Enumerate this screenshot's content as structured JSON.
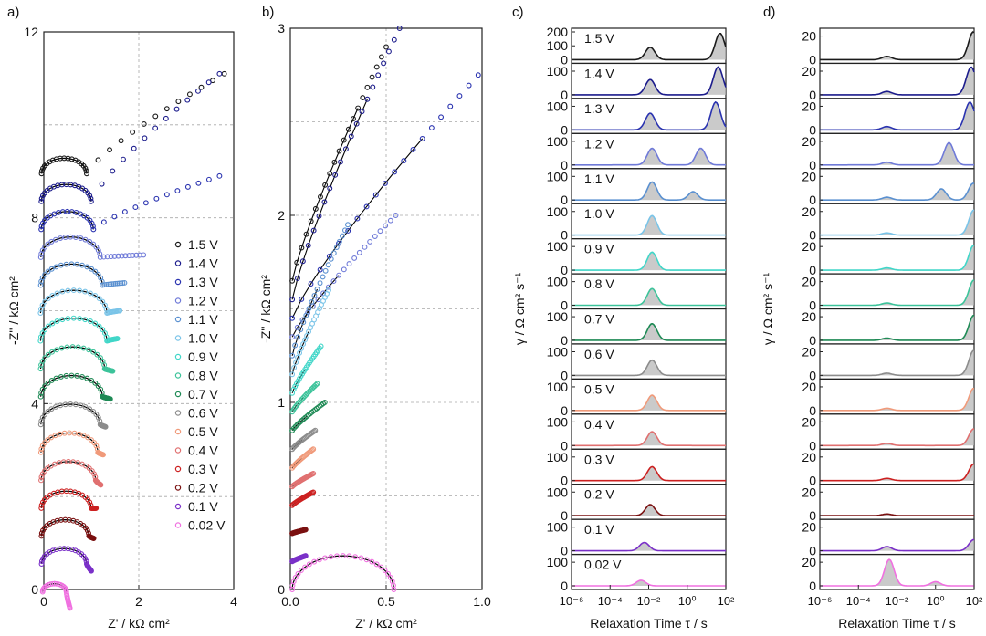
{
  "chart_data": [
    {
      "type": "scatter",
      "panel": "a)",
      "xlabel": "Z' / kΩ cm²",
      "ylabel": "-Z'' / kΩ cm²",
      "xlim": [
        0,
        4
      ],
      "ylim": [
        0,
        12
      ],
      "xticks": [
        "0",
        "2",
        "4"
      ],
      "yticks": [
        "0",
        "4",
        "8",
        "12"
      ],
      "grid": true,
      "legend": [
        "1.5 V",
        "1.4 V",
        "1.3 V",
        "1.2 V",
        "1.1 V",
        "1.0 V",
        "0.9 V",
        "0.8 V",
        "0.7 V",
        "0.6 V",
        "0.5 V",
        "0.4 V",
        "0.3 V",
        "0.2 V",
        "0.1 V",
        "0.02 V"
      ],
      "series": [
        {
          "name": "1.5 V",
          "offset": 8.4,
          "arc_end": 0.95,
          "tail_end": [
            3.8,
            11.1
          ]
        },
        {
          "name": "1.4 V",
          "offset": 7.8,
          "arc_end": 1.05,
          "tail_end": [
            3.7,
            11.1
          ]
        },
        {
          "name": "1.3 V",
          "offset": 7.2,
          "arc_end": 1.1,
          "tail_end": [
            3.7,
            8.9
          ]
        },
        {
          "name": "1.2 V",
          "offset": 6.6,
          "arc_end": 1.25,
          "tail_end": [
            2.1,
            7.2
          ]
        },
        {
          "name": "1.1 V",
          "offset": 6.0,
          "arc_end": 1.3,
          "tail_end": [
            1.7,
            6.6
          ]
        },
        {
          "name": "1.0 V",
          "offset": 5.4,
          "arc_end": 1.4,
          "tail_end": [
            1.6,
            6.0
          ]
        },
        {
          "name": "0.9 V",
          "offset": 4.8,
          "arc_end": 1.4,
          "tail_end": [
            1.55,
            5.4
          ]
        },
        {
          "name": "0.8 V",
          "offset": 4.2,
          "arc_end": 1.35,
          "tail_end": [
            1.45,
            4.7
          ]
        },
        {
          "name": "0.7 V",
          "offset": 3.6,
          "arc_end": 1.3,
          "tail_end": [
            1.4,
            4.1
          ]
        },
        {
          "name": "0.6 V",
          "offset": 3.0,
          "arc_end": 1.25,
          "tail_end": [
            1.3,
            3.5
          ]
        },
        {
          "name": "0.5 V",
          "offset": 2.4,
          "arc_end": 1.2,
          "tail_end": [
            1.25,
            2.9
          ]
        },
        {
          "name": "0.4 V",
          "offset": 1.8,
          "arc_end": 1.15,
          "tail_end": [
            1.2,
            2.25
          ]
        },
        {
          "name": "0.3 V",
          "offset": 1.2,
          "arc_end": 1.05,
          "tail_end": [
            1.1,
            1.75
          ]
        },
        {
          "name": "0.2 V",
          "offset": 0.6,
          "arc_end": 1.0,
          "tail_end": [
            1.05,
            1.1
          ]
        },
        {
          "name": "0.1 V",
          "offset": 0.0,
          "arc_end": 0.95,
          "tail_end": [
            1.0,
            0.4
          ]
        },
        {
          "name": "0.02 V",
          "offset": -0.6,
          "arc_end": 0.5,
          "tail_end": [
            0.55,
            -0.4
          ]
        }
      ]
    },
    {
      "type": "scatter",
      "panel": "b)",
      "xlabel": "Z' / kΩ cm²",
      "ylabel": "-Z'' / kΩ cm²",
      "xlim": [
        0,
        1
      ],
      "ylim": [
        0,
        3
      ],
      "xticks": [
        "0.0",
        "0.5",
        "1.0"
      ],
      "yticks": [
        "0",
        "1",
        "2",
        "3"
      ],
      "grid": true,
      "series": [
        {
          "name": "1.5 V",
          "start_y": 1.65,
          "end": [
            0.5,
            2.9
          ]
        },
        {
          "name": "1.4 V",
          "start_y": 1.55,
          "end": [
            0.57,
            3.0
          ]
        },
        {
          "name": "1.3 V",
          "start_y": 1.45,
          "end": [
            0.98,
            2.75
          ]
        },
        {
          "name": "1.2 V",
          "start_y": 1.35,
          "end": [
            0.55,
            2.0
          ]
        },
        {
          "name": "1.1 V",
          "start_y": 1.25,
          "end": [
            0.3,
            1.95
          ]
        },
        {
          "name": "1.0 V",
          "start_y": 1.15,
          "end": [
            0.2,
            1.6
          ]
        },
        {
          "name": "0.9 V",
          "start_y": 1.05,
          "end": [
            0.16,
            1.3
          ]
        },
        {
          "name": "0.8 V",
          "start_y": 0.95,
          "end": [
            0.14,
            1.1
          ]
        },
        {
          "name": "0.7 V",
          "start_y": 0.85,
          "end": [
            0.18,
            1.0
          ]
        },
        {
          "name": "0.6 V",
          "start_y": 0.75,
          "end": [
            0.13,
            0.85
          ]
        },
        {
          "name": "0.5 V",
          "start_y": 0.65,
          "end": [
            0.12,
            0.75
          ]
        },
        {
          "name": "0.4 V",
          "start_y": 0.55,
          "end": [
            0.12,
            0.62
          ]
        },
        {
          "name": "0.3 V",
          "start_y": 0.45,
          "end": [
            0.12,
            0.52
          ]
        },
        {
          "name": "0.2 V",
          "start_y": 0.3,
          "end": [
            0.08,
            0.32
          ]
        },
        {
          "name": "0.1 V",
          "start_y": 0.15,
          "end": [
            0.08,
            0.18
          ]
        },
        {
          "name": "0.02 V",
          "start_y": 0.0,
          "end": [
            0.55,
            0.0
          ]
        }
      ]
    },
    {
      "type": "area",
      "panel": "c)",
      "xlabel": "Relaxation Time τ / s",
      "ylabel": "γ / Ω cm² s⁻¹",
      "xlim": [
        1e-06,
        100
      ],
      "x_scale": "log",
      "xticks": [
        "10⁻⁶",
        "10⁻⁴",
        "10⁻²",
        "10⁰",
        "10²"
      ],
      "rows": [
        {
          "label": "1.5 V",
          "yticks": [
            "200",
            "100",
            "0"
          ],
          "peaks": [
            [
              0.012,
              0.45
            ],
            [
              50,
              0.95
            ]
          ]
        },
        {
          "label": "1.4 V",
          "yticks": [
            "100",
            "0"
          ],
          "peaks": [
            [
              0.012,
              0.55
            ],
            [
              40,
              1.0
            ]
          ]
        },
        {
          "label": "1.3 V",
          "yticks": [
            "100",
            "0"
          ],
          "peaks": [
            [
              0.012,
              0.6
            ],
            [
              30,
              1.0
            ]
          ]
        },
        {
          "label": "1.2 V",
          "yticks": [
            "100",
            "0"
          ],
          "peaks": [
            [
              0.015,
              0.6
            ],
            [
              5,
              0.6
            ]
          ]
        },
        {
          "label": "1.1 V",
          "yticks": [
            "100",
            "0"
          ],
          "peaks": [
            [
              0.015,
              0.65
            ],
            [
              2,
              0.3
            ]
          ]
        },
        {
          "label": "1.0 V",
          "yticks": [
            "100",
            "0"
          ],
          "peaks": [
            [
              0.015,
              0.7
            ]
          ]
        },
        {
          "label": "0.9 V",
          "yticks": [
            "100",
            "0"
          ],
          "peaks": [
            [
              0.015,
              0.65
            ]
          ]
        },
        {
          "label": "0.8 V",
          "yticks": [
            "100",
            "0"
          ],
          "peaks": [
            [
              0.015,
              0.6
            ]
          ]
        },
        {
          "label": "0.7 V",
          "yticks": [
            "100",
            "0"
          ],
          "peaks": [
            [
              0.015,
              0.6
            ]
          ]
        },
        {
          "label": "0.6 V",
          "yticks": [
            "100",
            "0"
          ],
          "peaks": [
            [
              0.015,
              0.55
            ]
          ]
        },
        {
          "label": "0.5 V",
          "yticks": [
            "100",
            "0"
          ],
          "peaks": [
            [
              0.015,
              0.55
            ]
          ]
        },
        {
          "label": "0.4 V",
          "yticks": [
            "100",
            "0"
          ],
          "peaks": [
            [
              0.015,
              0.5
            ]
          ]
        },
        {
          "label": "0.3 V",
          "yticks": [
            "100",
            "0"
          ],
          "peaks": [
            [
              0.015,
              0.5
            ]
          ]
        },
        {
          "label": "0.2 V",
          "yticks": [
            "100",
            "0"
          ],
          "peaks": [
            [
              0.012,
              0.4
            ]
          ]
        },
        {
          "label": "0.1 V",
          "yticks": [
            "100",
            "0"
          ],
          "peaks": [
            [
              0.006,
              0.3
            ]
          ]
        },
        {
          "label": "0.02 V",
          "yticks": [
            "100",
            "0"
          ],
          "peaks": [
            [
              0.004,
              0.2
            ]
          ]
        }
      ]
    },
    {
      "type": "area",
      "panel": "d)",
      "xlabel": "Relaxation Time τ / s",
      "ylabel": "γ / Ω cm² s⁻¹",
      "xlim": [
        1e-06,
        100
      ],
      "x_scale": "log",
      "xticks": [
        "10⁻⁶",
        "10⁻⁴",
        "10⁻²",
        "10⁰",
        "10²"
      ],
      "rows": [
        {
          "label": "1.5 V",
          "yticks": [
            "20",
            "0"
          ],
          "peaks": [
            [
              0.003,
              0.12
            ],
            [
              90,
              1.0
            ]
          ]
        },
        {
          "label": "1.4 V",
          "yticks": [
            "20",
            "0"
          ],
          "peaks": [
            [
              0.003,
              0.12
            ],
            [
              70,
              1.0
            ]
          ]
        },
        {
          "label": "1.3 V",
          "yticks": [
            "20",
            "0"
          ],
          "peaks": [
            [
              0.003,
              0.12
            ],
            [
              60,
              1.0
            ]
          ]
        },
        {
          "label": "1.2 V",
          "yticks": [
            "20",
            "0"
          ],
          "peaks": [
            [
              0.003,
              0.1
            ],
            [
              5,
              0.8
            ]
          ]
        },
        {
          "label": "1.1 V",
          "yticks": [
            "20",
            "0"
          ],
          "peaks": [
            [
              0.003,
              0.1
            ],
            [
              2,
              0.4
            ],
            [
              90,
              0.6
            ]
          ]
        },
        {
          "label": "1.0 V",
          "yticks": [
            "20",
            "0"
          ],
          "peaks": [
            [
              0.003,
              0.08
            ],
            [
              95,
              0.9
            ]
          ]
        },
        {
          "label": "0.9 V",
          "yticks": [
            "20",
            "0"
          ],
          "peaks": [
            [
              0.003,
              0.08
            ],
            [
              95,
              0.9
            ]
          ]
        },
        {
          "label": "0.8 V",
          "yticks": [
            "20",
            "0"
          ],
          "peaks": [
            [
              0.003,
              0.08
            ],
            [
              95,
              0.9
            ]
          ]
        },
        {
          "label": "0.7 V",
          "yticks": [
            "20",
            "0"
          ],
          "peaks": [
            [
              0.003,
              0.08
            ],
            [
              95,
              0.9
            ]
          ]
        },
        {
          "label": "0.6 V",
          "yticks": [
            "20",
            "0"
          ],
          "peaks": [
            [
              0.003,
              0.08
            ],
            [
              95,
              0.9
            ]
          ]
        },
        {
          "label": "0.5 V",
          "yticks": [
            "20",
            "0"
          ],
          "peaks": [
            [
              0.003,
              0.08
            ],
            [
              95,
              0.8
            ]
          ]
        },
        {
          "label": "0.4 V",
          "yticks": [
            "20",
            "0"
          ],
          "peaks": [
            [
              0.003,
              0.08
            ],
            [
              95,
              0.6
            ]
          ]
        },
        {
          "label": "0.3 V",
          "yticks": [
            "20",
            "0"
          ],
          "peaks": [
            [
              0.003,
              0.08
            ],
            [
              95,
              0.6
            ]
          ]
        },
        {
          "label": "0.2 V",
          "yticks": [
            "20",
            "0"
          ],
          "peaks": [
            [
              0.003,
              0.06
            ]
          ]
        },
        {
          "label": "0.1 V",
          "yticks": [
            "20",
            "0"
          ],
          "peaks": [
            [
              0.003,
              0.15
            ],
            [
              95,
              0.4
            ]
          ]
        },
        {
          "label": "0.02 V",
          "yticks": [
            "20",
            "0"
          ],
          "peaks": [
            [
              0.004,
              0.95
            ],
            [
              1,
              0.15
            ]
          ]
        }
      ]
    }
  ],
  "colors": {
    "1.5 V": "#1a1a1a",
    "1.4 V": "#1c1c8c",
    "1.3 V": "#2a33b0",
    "1.2 V": "#6f7ad8",
    "1.1 V": "#5a90d0",
    "1.0 V": "#7ac4e8",
    "0.9 V": "#40d6c8",
    "0.8 V": "#3cc39a",
    "0.7 V": "#1e8a55",
    "0.6 V": "#8c8c8c",
    "0.5 V": "#f09a7a",
    "0.4 V": "#e07070",
    "0.3 V": "#cc2020",
    "0.2 V": "#7a1010",
    "0.1 V": "#7a30c8",
    "0.02 V": "#f070e0"
  }
}
